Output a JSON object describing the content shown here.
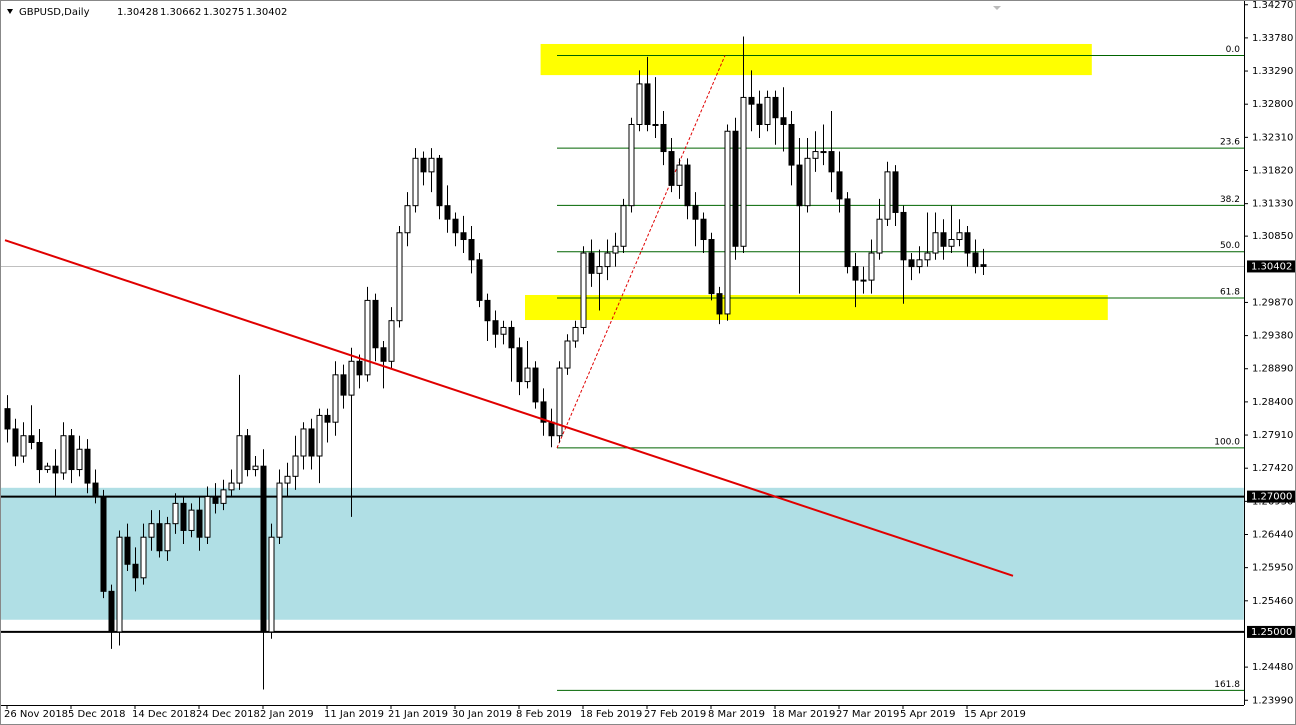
{
  "chart_data": {
    "type": "candlestick",
    "symbol": "GBPUSD,Daily",
    "categories": [
      "26 Nov 2018",
      null,
      null,
      null,
      null,
      null,
      null,
      null,
      "5 Dec 2018",
      null,
      null,
      null,
      null,
      null,
      null,
      null,
      "14 Dec 2018",
      null,
      null,
      null,
      null,
      null,
      null,
      null,
      "24 Dec 2018",
      null,
      null,
      null,
      null,
      null,
      null,
      null,
      "2 Jan 2019",
      null,
      null,
      null,
      null,
      null,
      null,
      null,
      "11 Jan 2019",
      null,
      null,
      null,
      null,
      null,
      null,
      null,
      "21 Jan 2019",
      null,
      null,
      null,
      null,
      null,
      null,
      null,
      "30 Jan 2019",
      null,
      null,
      null,
      null,
      null,
      null,
      null,
      "8 Feb 2019",
      null,
      null,
      null,
      null,
      null,
      null,
      null,
      "18 Feb 2019",
      null,
      null,
      null,
      null,
      null,
      null,
      null,
      "27 Feb 2019",
      null,
      null,
      null,
      null,
      null,
      null,
      null,
      "8 Mar 2019",
      null,
      null,
      null,
      null,
      null,
      null,
      null,
      "18 Mar 2019",
      null,
      null,
      null,
      null,
      null,
      null,
      null,
      "27 Mar 2019",
      null,
      null,
      null,
      null,
      null,
      null,
      null,
      "5 Apr 2019",
      null,
      null,
      null,
      null,
      null,
      null,
      null,
      "15 Apr 2019",
      null,
      null
    ],
    "ohlc": [
      [
        1.283,
        1.285,
        1.278,
        1.28
      ],
      [
        1.28,
        1.2815,
        1.2745,
        1.276
      ],
      [
        1.276,
        1.281,
        1.275,
        1.279
      ],
      [
        1.279,
        1.2835,
        1.277,
        1.278
      ],
      [
        1.278,
        1.28,
        1.272,
        1.274
      ],
      [
        1.274,
        1.275,
        1.2735,
        1.2745
      ],
      [
        1.2745,
        1.277,
        1.27,
        1.2735
      ],
      [
        1.2735,
        1.281,
        1.2725,
        1.279
      ],
      [
        1.279,
        1.28,
        1.272,
        1.274
      ],
      [
        1.274,
        1.279,
        1.273,
        1.277
      ],
      [
        1.277,
        1.2785,
        1.2705,
        1.272
      ],
      [
        1.272,
        1.274,
        1.269,
        1.27
      ],
      [
        1.27,
        1.271,
        1.255,
        1.256
      ],
      [
        1.256,
        1.257,
        1.2475,
        1.25
      ],
      [
        1.25,
        1.265,
        1.248,
        1.264
      ],
      [
        1.264,
        1.266,
        1.259,
        1.26
      ],
      [
        1.26,
        1.2625,
        1.256,
        1.258
      ],
      [
        1.258,
        1.266,
        1.257,
        1.264
      ],
      [
        1.264,
        1.268,
        1.262,
        1.266
      ],
      [
        1.266,
        1.268,
        1.261,
        1.262
      ],
      [
        1.262,
        1.267,
        1.2605,
        1.266
      ],
      [
        1.266,
        1.2705,
        1.2645,
        1.269
      ],
      [
        1.269,
        1.27,
        1.263,
        1.265
      ],
      [
        1.265,
        1.269,
        1.264,
        1.268
      ],
      [
        1.268,
        1.27,
        1.262,
        1.264
      ],
      [
        1.264,
        1.2715,
        1.263,
        1.27
      ],
      [
        1.27,
        1.272,
        1.2675,
        1.269
      ],
      [
        1.269,
        1.2725,
        1.268,
        1.271
      ],
      [
        1.271,
        1.274,
        1.27,
        1.272
      ],
      [
        1.272,
        1.288,
        1.271,
        1.279
      ],
      [
        1.279,
        1.28,
        1.273,
        1.274
      ],
      [
        1.274,
        1.276,
        1.273,
        1.2745
      ],
      [
        1.2745,
        1.277,
        1.2415,
        1.25
      ],
      [
        1.25,
        1.266,
        1.249,
        1.264
      ],
      [
        1.264,
        1.274,
        1.263,
        1.272
      ],
      [
        1.272,
        1.275,
        1.27,
        1.273
      ],
      [
        1.273,
        1.279,
        1.271,
        1.276
      ],
      [
        1.276,
        1.281,
        1.274,
        1.28
      ],
      [
        1.28,
        1.2815,
        1.274,
        1.276
      ],
      [
        1.276,
        1.283,
        1.272,
        1.282
      ],
      [
        1.282,
        1.283,
        1.278,
        1.281
      ],
      [
        1.281,
        1.29,
        1.279,
        1.288
      ],
      [
        1.288,
        1.2895,
        1.283,
        1.285
      ],
      [
        1.285,
        1.292,
        1.267,
        1.29
      ],
      [
        1.29,
        1.291,
        1.286,
        1.288
      ],
      [
        1.288,
        1.301,
        1.287,
        1.299
      ],
      [
        1.299,
        1.3,
        1.29,
        1.292
      ],
      [
        1.292,
        1.293,
        1.286,
        1.29
      ],
      [
        1.29,
        1.298,
        1.289,
        1.296
      ],
      [
        1.296,
        1.31,
        1.295,
        1.309
      ],
      [
        1.309,
        1.315,
        1.307,
        1.313
      ],
      [
        1.313,
        1.3215,
        1.312,
        1.32
      ],
      [
        1.32,
        1.321,
        1.316,
        1.318
      ],
      [
        1.318,
        1.3215,
        1.315,
        1.32
      ],
      [
        1.32,
        1.3205,
        1.311,
        1.313
      ],
      [
        1.313,
        1.316,
        1.309,
        1.311
      ],
      [
        1.311,
        1.312,
        1.307,
        1.309
      ],
      [
        1.309,
        1.3115,
        1.306,
        1.308
      ],
      [
        1.308,
        1.31,
        1.303,
        1.305
      ],
      [
        1.305,
        1.306,
        1.298,
        1.299
      ],
      [
        1.299,
        1.3,
        1.293,
        1.296
      ],
      [
        1.296,
        1.2975,
        1.292,
        1.294
      ],
      [
        1.294,
        1.296,
        1.2925,
        1.295
      ],
      [
        1.295,
        1.296,
        1.287,
        1.292
      ],
      [
        1.292,
        1.2935,
        1.285,
        1.287
      ],
      [
        1.287,
        1.293,
        1.286,
        1.289
      ],
      [
        1.289,
        1.29,
        1.283,
        1.284
      ],
      [
        1.284,
        1.286,
        1.279,
        1.281
      ],
      [
        1.281,
        1.283,
        1.2773,
        1.279
      ],
      [
        1.279,
        1.29,
        1.278,
        1.289
      ],
      [
        1.289,
        1.294,
        1.288,
        1.293
      ],
      [
        1.293,
        1.296,
        1.292,
        1.295
      ],
      [
        1.295,
        1.307,
        1.294,
        1.306
      ],
      [
        1.306,
        1.308,
        1.301,
        1.303
      ],
      [
        1.303,
        1.3065,
        1.2975,
        1.304
      ],
      [
        1.304,
        1.308,
        1.302,
        1.306
      ],
      [
        1.306,
        1.309,
        1.304,
        1.307
      ],
      [
        1.307,
        1.314,
        1.306,
        1.313
      ],
      [
        1.313,
        1.326,
        1.312,
        1.325
      ],
      [
        1.325,
        1.333,
        1.324,
        1.331
      ],
      [
        1.331,
        1.335,
        1.324,
        1.325
      ],
      [
        1.325,
        1.332,
        1.323,
        1.325
      ],
      [
        1.325,
        1.327,
        1.319,
        1.321
      ],
      [
        1.321,
        1.323,
        1.315,
        1.316
      ],
      [
        1.316,
        1.32,
        1.314,
        1.319
      ],
      [
        1.319,
        1.32,
        1.311,
        1.313
      ],
      [
        1.313,
        1.315,
        1.307,
        1.311
      ],
      [
        1.311,
        1.312,
        1.306,
        1.308
      ],
      [
        1.308,
        1.309,
        1.299,
        1.3
      ],
      [
        1.3,
        1.301,
        1.2955,
        1.297
      ],
      [
        1.297,
        1.325,
        1.296,
        1.324
      ],
      [
        1.324,
        1.326,
        1.305,
        1.307
      ],
      [
        1.307,
        1.338,
        1.306,
        1.329
      ],
      [
        1.329,
        1.333,
        1.324,
        1.328
      ],
      [
        1.328,
        1.33,
        1.323,
        1.325
      ],
      [
        1.325,
        1.33,
        1.324,
        1.329
      ],
      [
        1.329,
        1.33,
        1.322,
        1.326
      ],
      [
        1.326,
        1.3305,
        1.321,
        1.325
      ],
      [
        1.325,
        1.327,
        1.316,
        1.319
      ],
      [
        1.319,
        1.323,
        1.3,
        1.313
      ],
      [
        1.313,
        1.323,
        1.312,
        1.32
      ],
      [
        1.32,
        1.324,
        1.318,
        1.321
      ],
      [
        1.321,
        1.325,
        1.319,
        1.321
      ],
      [
        1.321,
        1.327,
        1.315,
        1.318
      ],
      [
        1.318,
        1.321,
        1.312,
        1.314
      ],
      [
        1.314,
        1.315,
        1.303,
        1.304
      ],
      [
        1.304,
        1.306,
        1.298,
        1.302
      ],
      [
        1.302,
        1.304,
        1.3,
        1.302
      ],
      [
        1.302,
        1.308,
        1.3,
        1.306
      ],
      [
        1.306,
        1.314,
        1.305,
        1.311
      ],
      [
        1.311,
        1.3195,
        1.31,
        1.318
      ],
      [
        1.318,
        1.319,
        1.31,
        1.312
      ],
      [
        1.312,
        1.313,
        1.2985,
        1.305
      ],
      [
        1.305,
        1.306,
        1.302,
        1.304
      ],
      [
        1.304,
        1.307,
        1.303,
        1.305
      ],
      [
        1.305,
        1.312,
        1.304,
        1.306
      ],
      [
        1.306,
        1.312,
        1.305,
        1.309
      ],
      [
        1.309,
        1.311,
        1.305,
        1.307
      ],
      [
        1.307,
        1.313,
        1.306,
        1.308
      ],
      [
        1.308,
        1.311,
        1.307,
        1.309
      ],
      [
        1.309,
        1.31,
        1.304,
        1.306
      ],
      [
        1.306,
        1.308,
        1.303,
        1.304
      ],
      [
        1.30428,
        1.30662,
        1.30275,
        1.30402
      ]
    ],
    "ylim": [
      1.2392,
      1.3434
    ],
    "yticks": [
      {
        "value": 1.3427,
        "label": "1.34270"
      },
      {
        "value": 1.3378,
        "label": "1.33780"
      },
      {
        "value": 1.3329,
        "label": "1.33290"
      },
      {
        "value": 1.328,
        "label": "1.32800"
      },
      {
        "value": 1.3231,
        "label": "1.32310"
      },
      {
        "value": 1.3182,
        "label": "1.31820"
      },
      {
        "value": 1.3133,
        "label": "1.31330"
      },
      {
        "value": 1.3085,
        "label": "1.30850"
      },
      {
        "value": 1.2987,
        "label": "1.29870"
      },
      {
        "value": 1.2938,
        "label": "1.29380"
      },
      {
        "value": 1.2889,
        "label": "1.28890"
      },
      {
        "value": 1.284,
        "label": "1.28400"
      },
      {
        "value": 1.2791,
        "label": "1.27910"
      },
      {
        "value": 1.2742,
        "label": "1.27420"
      },
      {
        "value": 1.2693,
        "label": "1.26930"
      },
      {
        "value": 1.2644,
        "label": "1.26440"
      },
      {
        "value": 1.2595,
        "label": "1.25950"
      },
      {
        "value": 1.2546,
        "label": "1.25460"
      },
      {
        "value": 1.2448,
        "label": "1.24480"
      },
      {
        "value": 1.2399,
        "label": "1.23990"
      }
    ],
    "levels": [
      {
        "value": 1.27,
        "label": "1.27000"
      },
      {
        "value": 1.25,
        "label": "1.25000"
      }
    ],
    "zones": [
      {
        "x": [
          -0.9,
          154.6
        ],
        "ylim": [
          1.2518,
          1.2713
        ],
        "color": "#b0dfe5"
      },
      {
        "x": [
          66.7,
          135.6
        ],
        "ylim": [
          1.3323,
          1.3369
        ],
        "color": "#ffff00"
      },
      {
        "x": [
          64.75,
          137.6
        ],
        "ylim": [
          1.2961,
          1.2998
        ],
        "color": "#ffff00"
      }
    ],
    "trendline": {
      "x": [
        -0.25,
        125.75
      ],
      "y": [
        1.3079,
        1.2583
      ],
      "color": "#e00000"
    },
    "fib": {
      "x": [
        68.75,
        89.75
      ],
      "high": 1.3352,
      "low": 1.2772,
      "color": "#006400",
      "dash_color": "#e00000",
      "levels": [
        {
          "value": 0,
          "label": "0.0"
        },
        23.6,
        38.2,
        {
          "value": 50,
          "label": "50.0"
        },
        61.8,
        {
          "value": 100,
          "label": "100.0"
        },
        161.8
      ]
    }
  }
}
